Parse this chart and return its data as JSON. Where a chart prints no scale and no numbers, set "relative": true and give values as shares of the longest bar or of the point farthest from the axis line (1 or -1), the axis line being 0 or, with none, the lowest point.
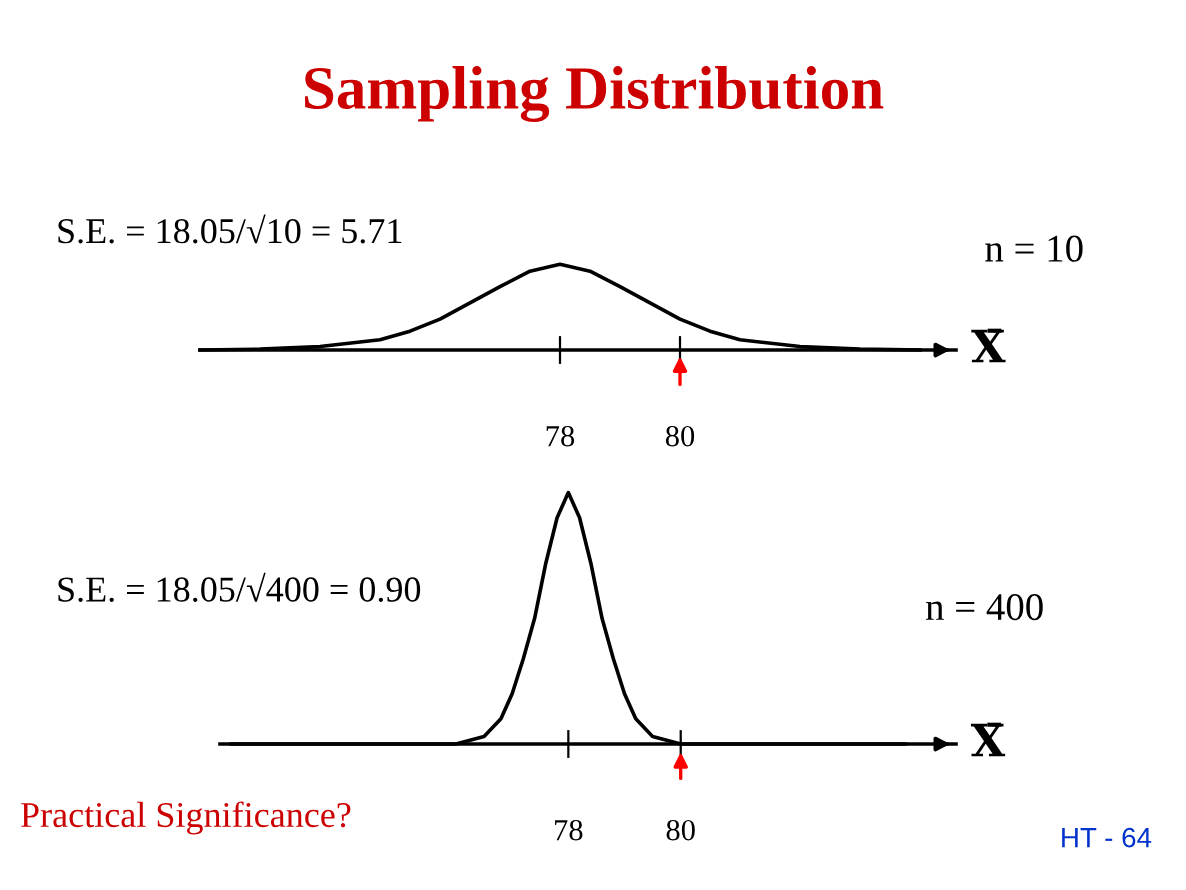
{
  "chart_data": [
    {
      "type": "line",
      "title": "Sampling Distribution",
      "relative": true,
      "xlabel": "X̄",
      "x": [
        72,
        73,
        74,
        75,
        75.5,
        76,
        76.5,
        77,
        77.5,
        78,
        78.5,
        79,
        79.5,
        80,
        80.5,
        81,
        82,
        83,
        84
      ],
      "series": [
        {
          "color": "#000000",
          "values": [
            0.0,
            0.01,
            0.04,
            0.12,
            0.22,
            0.36,
            0.55,
            0.74,
            0.92,
            1,
            0.92,
            0.74,
            0.55,
            0.36,
            0.22,
            0.12,
            0.04,
            0.01,
            0.0
          ]
        }
      ],
      "xlim": [
        72,
        84.6
      ],
      "xticks": [
        78,
        80
      ],
      "grid": false,
      "legend": false,
      "marker": "none",
      "line_style": "solid",
      "annotations": [
        "S.E. = 18.05/√10 = 5.71",
        "n = 10"
      ]
    },
    {
      "type": "line",
      "relative": true,
      "xlabel": "X̄",
      "x": [
        72,
        75,
        76,
        76.5,
        76.8,
        77,
        77.2,
        77.4,
        77.6,
        77.8,
        78,
        78.2,
        78.4,
        78.6,
        78.8,
        79,
        79.2,
        79.5,
        80,
        81,
        84
      ],
      "series": [
        {
          "color": "#000000",
          "values": [
            0.0,
            0.0,
            0.0,
            0.03,
            0.1,
            0.2,
            0.34,
            0.5,
            0.72,
            0.9,
            1,
            0.9,
            0.72,
            0.5,
            0.34,
            0.2,
            0.1,
            0.03,
            0.0,
            0.0,
            0.0
          ]
        }
      ],
      "xlim": [
        71.8,
        84.9
      ],
      "xticks": [
        78,
        80
      ],
      "grid": false,
      "legend": false,
      "marker": "none",
      "line_style": "solid",
      "annotations": [
        "S.E. = 18.05/√400 = 0.90",
        "n = 400",
        "Practical Significance?",
        "HT - 64"
      ]
    }
  ]
}
